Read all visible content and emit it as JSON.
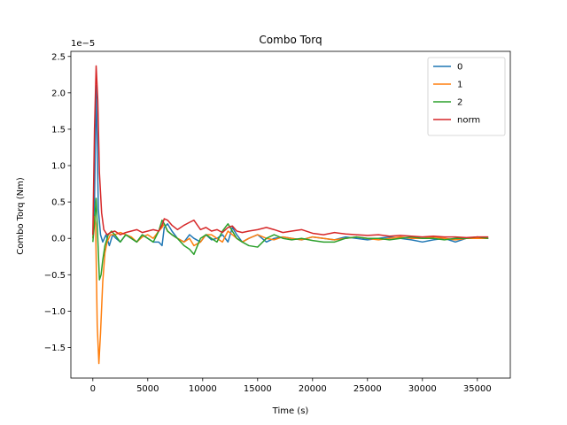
{
  "chart_data": {
    "type": "line",
    "title": "Combo Torq",
    "xlabel": "Time (s)",
    "ylabel": "Combo Torq (Nm)",
    "y_scale_label": "1e−5",
    "xlim": [
      -2000,
      38000
    ],
    "ylim": [
      -1.92,
      2.57
    ],
    "xticks": [
      0,
      5000,
      10000,
      15000,
      20000,
      25000,
      30000,
      35000
    ],
    "xtick_labels": [
      "0",
      "5000",
      "10000",
      "15000",
      "20000",
      "25000",
      "30000",
      "35000"
    ],
    "yticks": [
      -1.5,
      -1.0,
      -0.5,
      0.0,
      0.5,
      1.0,
      1.5,
      2.0,
      2.5
    ],
    "ytick_labels": [
      "−1.5",
      "−1.0",
      "−0.5",
      "0.0",
      "0.5",
      "1.0",
      "1.5",
      "2.0",
      "2.5"
    ],
    "grid": false,
    "legend_position": "top-right",
    "series": [
      {
        "name": "0",
        "color": "#1f77b4",
        "x": [
          0,
          150,
          300,
          400,
          500,
          700,
          900,
          1200,
          1500,
          1800,
          2100,
          2500,
          3000,
          3500,
          4000,
          4500,
          5000,
          5500,
          6000,
          6300,
          6500,
          6800,
          7200,
          7700,
          8300,
          8800,
          9200,
          9800,
          10300,
          10800,
          11300,
          11800,
          12300,
          12700,
          13100,
          13600,
          14200,
          15000,
          15800,
          16500,
          17300,
          18100,
          19000,
          20000,
          21000,
          22000,
          23000,
          24000,
          25000,
          26000,
          27000,
          28000,
          29000,
          30000,
          31000,
          32000,
          33000,
          34000,
          35000,
          36000
        ],
        "y": [
          0.0,
          0.5,
          2.1,
          1.3,
          0.4,
          0.05,
          -0.05,
          0.05,
          -0.1,
          0.05,
          0.0,
          -0.05,
          0.05,
          0.0,
          -0.05,
          0.05,
          0.0,
          -0.05,
          -0.05,
          -0.1,
          0.15,
          0.2,
          0.1,
          0.0,
          -0.05,
          0.05,
          0.0,
          -0.05,
          0.05,
          -0.02,
          0.0,
          0.05,
          -0.05,
          0.15,
          0.05,
          -0.05,
          0.0,
          0.05,
          -0.05,
          0.0,
          0.02,
          0.0,
          -0.02,
          0.02,
          0.0,
          -0.02,
          0.02,
          0.0,
          -0.02,
          0.0,
          0.02,
          0.0,
          -0.02,
          -0.05,
          -0.02,
          0.0,
          -0.05,
          0.0,
          0.02,
          0.0
        ]
      },
      {
        "name": "1",
        "color": "#ff7f0e",
        "x": [
          0,
          150,
          250,
          400,
          550,
          700,
          900,
          1100,
          1300,
          1600,
          2000,
          2500,
          3000,
          3500,
          4000,
          4500,
          5000,
          5500,
          6000,
          6300,
          6500,
          6800,
          7200,
          7700,
          8300,
          8800,
          9200,
          9800,
          10300,
          10800,
          11300,
          11800,
          12300,
          12700,
          13100,
          13600,
          14200,
          15000,
          15800,
          16500,
          17300,
          18100,
          19000,
          20000,
          21000,
          22000,
          23000,
          24000,
          25000,
          26000,
          27000,
          28000,
          29000,
          30000,
          31000,
          32000,
          33000,
          34000,
          35000,
          36000
        ],
        "y": [
          0.0,
          0.3,
          0.2,
          -1.2,
          -1.72,
          -1.3,
          -0.6,
          -0.2,
          -0.05,
          0.05,
          0.05,
          0.08,
          0.05,
          0.02,
          -0.05,
          0.02,
          0.05,
          0.0,
          0.1,
          0.15,
          0.2,
          0.1,
          0.05,
          0.0,
          -0.05,
          0.0,
          -0.1,
          -0.05,
          0.05,
          0.05,
          0.0,
          -0.05,
          0.1,
          0.05,
          0.0,
          -0.05,
          0.0,
          0.05,
          0.0,
          -0.02,
          0.02,
          0.0,
          -0.02,
          0.02,
          0.0,
          -0.02,
          0.0,
          0.02,
          0.0,
          -0.02,
          0.0,
          0.02,
          0.0,
          0.0,
          0.02,
          0.0,
          -0.02,
          0.0,
          0.0,
          0.0
        ]
      },
      {
        "name": "2",
        "color": "#2ca02c",
        "x": [
          0,
          150,
          300,
          450,
          600,
          750,
          900,
          1100,
          1400,
          1700,
          2000,
          2500,
          3000,
          3500,
          4000,
          4500,
          5000,
          5500,
          6000,
          6300,
          6500,
          6800,
          7200,
          7700,
          8300,
          8800,
          9200,
          9800,
          10300,
          10800,
          11300,
          11800,
          12300,
          12700,
          13100,
          13600,
          14200,
          15000,
          15800,
          16500,
          17300,
          18100,
          19000,
          20000,
          21000,
          22000,
          23000,
          24000,
          25000,
          26000,
          27000,
          28000,
          29000,
          30000,
          31000,
          32000,
          33000,
          34000,
          35000,
          36000
        ],
        "y": [
          -0.05,
          0.2,
          0.55,
          0.0,
          -0.57,
          -0.5,
          -0.3,
          -0.1,
          0.05,
          0.1,
          0.05,
          -0.05,
          0.05,
          0.0,
          -0.05,
          0.05,
          0.0,
          -0.05,
          0.1,
          0.25,
          0.2,
          0.1,
          0.05,
          0.0,
          -0.1,
          -0.15,
          -0.22,
          0.0,
          0.05,
          0.0,
          -0.05,
          0.1,
          0.2,
          0.1,
          0.0,
          -0.05,
          -0.1,
          -0.12,
          0.0,
          0.05,
          0.0,
          -0.02,
          0.0,
          -0.03,
          -0.05,
          -0.05,
          0.0,
          0.02,
          0.0,
          0.0,
          -0.02,
          0.0,
          0.02,
          0.0,
          0.0,
          -0.02,
          0.0,
          0.0,
          0.02,
          0.0
        ]
      },
      {
        "name": "norm",
        "color": "#d62728",
        "x": [
          0,
          150,
          300,
          450,
          600,
          800,
          1000,
          1300,
          1600,
          2000,
          2500,
          3000,
          3500,
          4000,
          4500,
          5000,
          5500,
          6000,
          6300,
          6500,
          6800,
          7200,
          7700,
          8300,
          8800,
          9200,
          9800,
          10300,
          10800,
          11300,
          11800,
          12300,
          12700,
          13100,
          13600,
          14200,
          15000,
          15800,
          16500,
          17300,
          18100,
          19000,
          20000,
          21000,
          22000,
          23000,
          24000,
          25000,
          26000,
          27000,
          28000,
          29000,
          30000,
          31000,
          32000,
          33000,
          34000,
          35000,
          36000
        ],
        "y": [
          0.05,
          1.5,
          2.37,
          1.9,
          0.9,
          0.35,
          0.12,
          0.05,
          0.08,
          0.1,
          0.05,
          0.08,
          0.1,
          0.12,
          0.08,
          0.1,
          0.12,
          0.1,
          0.18,
          0.27,
          0.25,
          0.18,
          0.12,
          0.18,
          0.22,
          0.25,
          0.12,
          0.15,
          0.1,
          0.12,
          0.08,
          0.15,
          0.17,
          0.1,
          0.08,
          0.1,
          0.12,
          0.15,
          0.12,
          0.08,
          0.1,
          0.12,
          0.07,
          0.05,
          0.08,
          0.06,
          0.05,
          0.04,
          0.05,
          0.03,
          0.04,
          0.03,
          0.02,
          0.03,
          0.02,
          0.02,
          0.01,
          0.02,
          0.02
        ]
      }
    ]
  }
}
